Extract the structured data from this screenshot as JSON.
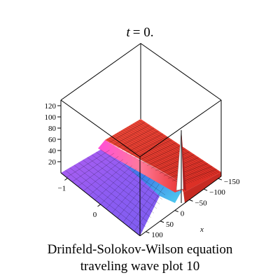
{
  "chart_data": {
    "type": "surface",
    "title": "t = 0.",
    "title_var": "t",
    "title_value": "= 0.",
    "xlabel": "x",
    "ylabel": "",
    "zlabel": "",
    "x_ticks": [
      "100",
      "50",
      "0",
      "−50",
      "−100",
      "−150"
    ],
    "y_ticks": [
      "−1",
      "0"
    ],
    "z_ticks": [
      "120",
      "100",
      "80",
      "60",
      "40",
      "20"
    ],
    "x_range": [
      -160,
      120
    ],
    "y_range": [
      -1.2,
      1.2
    ],
    "z_range": [
      0,
      130
    ],
    "plateau_level": 55,
    "spike_peak": 130,
    "spike_x": -125,
    "colors": {
      "high": "#e8302a",
      "mid": "#ff5cd0",
      "low": "#9a5cf0",
      "trough": "#3d7ae8",
      "edge": "#5be0f0",
      "box": "#000000"
    }
  },
  "caption": {
    "line1": "Drinfeld-Solokov-Wilson equation",
    "line2": "traveling wave plot 10"
  }
}
